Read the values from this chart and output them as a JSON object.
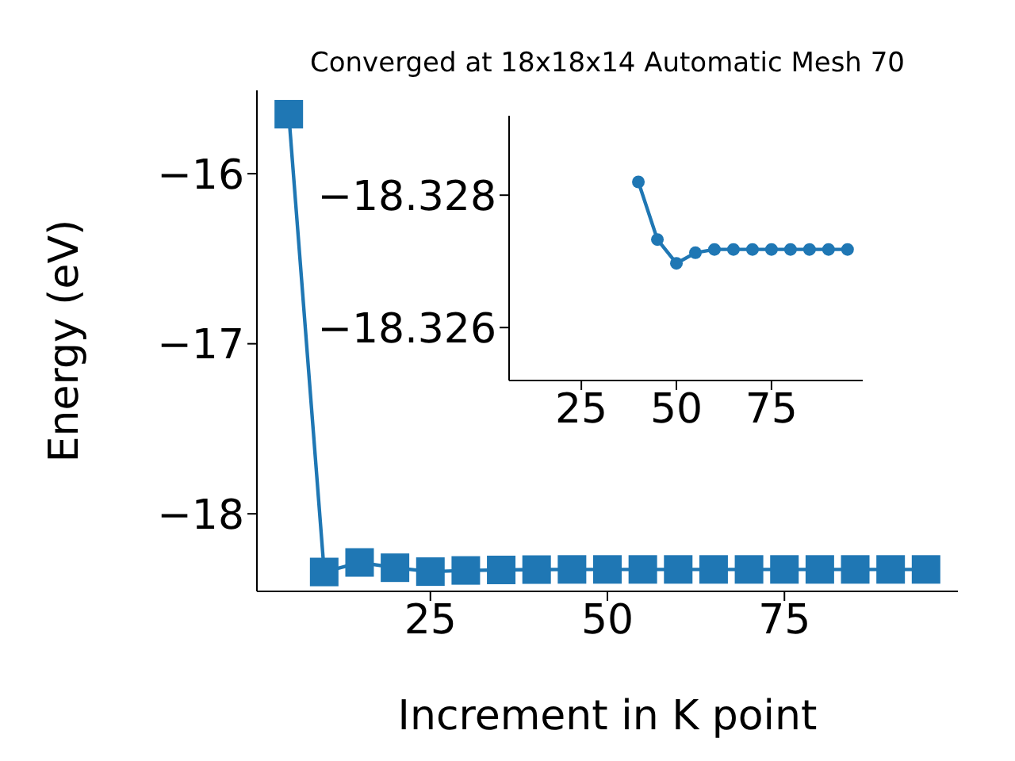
{
  "chart_data": [
    {
      "type": "line",
      "title": "Converged at 18x18x14 Automatic Mesh 70",
      "xlabel": "Increment in K point",
      "ylabel": "Energy (eV)",
      "x": [
        5,
        10,
        15,
        20,
        25,
        30,
        35,
        40,
        45,
        50,
        55,
        60,
        65,
        70,
        75,
        80,
        85,
        90,
        95
      ],
      "series": [
        {
          "color": "#1f77b4",
          "values": [
            -15.65,
            -18.342,
            -18.286,
            -18.317,
            -18.34,
            -18.333,
            -18.33,
            -18.328,
            -18.327,
            -18.327,
            -18.327,
            -18.327,
            -18.327,
            -18.327,
            -18.327,
            -18.327,
            -18.327,
            -18.327,
            -18.327
          ]
        }
      ],
      "xlim": [
        0.5,
        99.5
      ],
      "ylim": [
        -18.456,
        -15.51
      ],
      "xticks": [
        25,
        50,
        75
      ],
      "yticks": [
        -18,
        -17,
        -16
      ],
      "marker": "square",
      "grid": false,
      "legend": false
    },
    {
      "type": "line",
      "x": [
        40,
        45,
        50,
        55,
        60,
        65,
        70,
        75,
        80,
        85,
        90,
        95
      ],
      "series": [
        {
          "color": "#1f77b4",
          "values": [
            -18.3282,
            -18.32733,
            -18.32697,
            -18.32713,
            -18.32718,
            -18.32718,
            -18.32718,
            -18.32718,
            -18.32718,
            -18.32718,
            -18.32718,
            -18.32718
          ]
        }
      ],
      "xlim": [
        6,
        99
      ],
      "ylim": [
        -18.3252,
        -18.3292
      ],
      "xticks": [
        25,
        50,
        75
      ],
      "yticks": [
        -18.328,
        -18.326
      ],
      "marker": "circle",
      "grid": false,
      "legend": false
    }
  ]
}
